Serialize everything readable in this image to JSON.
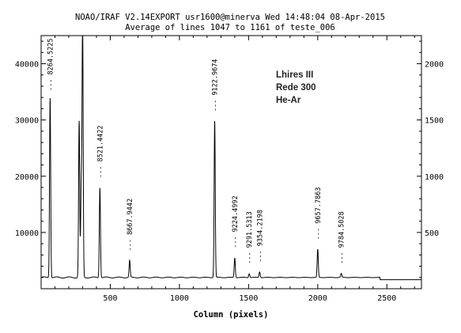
{
  "header": {
    "line1": "NOAO/IRAF V2.14EXPORT usr1600@minerva Wed 14:48:04 08-Apr-2015",
    "line2": "Average of lines 1047 to 1161 of teste_006"
  },
  "notes": [
    "Lhires III",
    "Rede 300",
    "He-Ar"
  ],
  "chart_data": {
    "type": "line",
    "title": "NOAO/IRAF V2.14EXPORT usr1600@minerva Wed 14:48:04 08-Apr-2015",
    "subtitle": "Average of lines 1047 to 1161 of teste_006",
    "xlabel": "Column (pixels)",
    "ylabel": "",
    "xlim": [
      0,
      2750
    ],
    "ylim_left": [
      0,
      45000
    ],
    "ylim_right": [
      0,
      2250
    ],
    "x_ticks": [
      500,
      1000,
      1500,
      2000,
      2500
    ],
    "y_ticks_left": [
      10000,
      20000,
      30000,
      40000
    ],
    "y_ticks_right": [
      500,
      1000,
      1500,
      2000
    ],
    "grid": false,
    "baseline": 2000,
    "peaks": [
      {
        "x": 65,
        "y": 34000,
        "label": "8264.5225"
      },
      {
        "x": 275,
        "y": 29800,
        "label": ""
      },
      {
        "x": 290,
        "y": 18000,
        "label": ""
      },
      {
        "x": 300,
        "y": 47000,
        "label": ""
      },
      {
        "x": 425,
        "y": 18000,
        "label": "8521.4422"
      },
      {
        "x": 640,
        "y": 5000,
        "label": "8667.9442"
      },
      {
        "x": 1255,
        "y": 29800,
        "label": "9122.9674"
      },
      {
        "x": 1400,
        "y": 5500,
        "label": "9224.4992"
      },
      {
        "x": 1505,
        "y": 2700,
        "label": "9291.5313"
      },
      {
        "x": 1580,
        "y": 3000,
        "label": "9354.2198"
      },
      {
        "x": 2000,
        "y": 7000,
        "label": "9657.7863"
      },
      {
        "x": 2170,
        "y": 2700,
        "label": "9784.5028"
      }
    ]
  }
}
